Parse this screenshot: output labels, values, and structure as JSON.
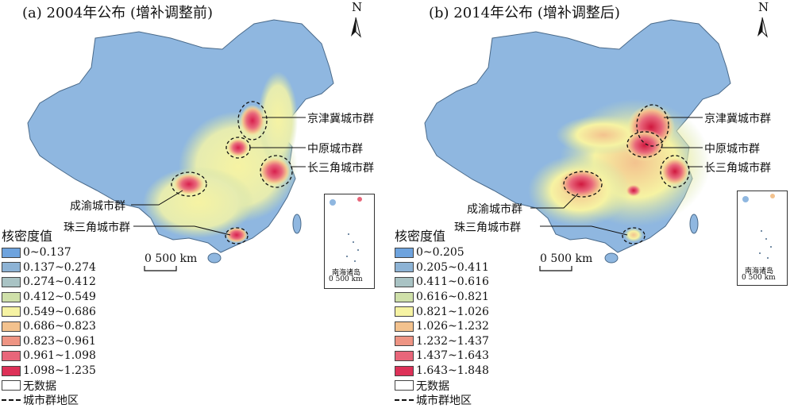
{
  "panels": [
    {
      "id": "2004",
      "title": "(a) 2004年公布 (增补调整前)",
      "north_label": "N",
      "legend_title": "核密度值",
      "legend_classes": [
        {
          "label": "0~0.137",
          "color": "#6ea3de"
        },
        {
          "label": "0.137~0.274",
          "color": "#8db3d5"
        },
        {
          "label": "0.274~0.412",
          "color": "#a9c3c4"
        },
        {
          "label": "0.412~0.549",
          "color": "#cfe0a9"
        },
        {
          "label": "0.549~0.686",
          "color": "#f6f3a3"
        },
        {
          "label": "0.686~0.823",
          "color": "#f3c28e"
        },
        {
          "label": "0.823~0.961",
          "color": "#ee9483"
        },
        {
          "label": "0.961~1.098",
          "color": "#e8667a"
        },
        {
          "label": "1.098~1.235",
          "color": "#dd3158"
        }
      ],
      "legend_nodata": "无数据",
      "legend_cluster": "城市群地区",
      "callouts": {
        "jjj": "京津冀城市群",
        "zy": "中原城市群",
        "csj": "长三角城市群",
        "cy": "成渝城市群",
        "zsj": "珠三角城市群"
      },
      "scale_label": "0    500 km",
      "inset_label": "南海诸岛",
      "inset_scale": "0 500 km"
    },
    {
      "id": "2014",
      "title": "(b) 2014年公布 (增补调整后)",
      "north_label": "N",
      "legend_title": "核密度值",
      "legend_classes": [
        {
          "label": "0~0.205",
          "color": "#6ea3de"
        },
        {
          "label": "0.205~0.411",
          "color": "#8db3d5"
        },
        {
          "label": "0.411~0.616",
          "color": "#a9c3c4"
        },
        {
          "label": "0.616~0.821",
          "color": "#cfe0a9"
        },
        {
          "label": "0.821~1.026",
          "color": "#f6f3a3"
        },
        {
          "label": "1.026~1.232",
          "color": "#f3c28e"
        },
        {
          "label": "1.232~1.437",
          "color": "#ee9483"
        },
        {
          "label": "1.437~1.643",
          "color": "#e8667a"
        },
        {
          "label": "1.643~1.848",
          "color": "#dd3158"
        }
      ],
      "legend_nodata": "无数据",
      "legend_cluster": "城市群地区",
      "callouts": {
        "jjj": "京津冀城市群",
        "zy": "中原城市群",
        "csj": "长三角城市群",
        "cy": "成渝城市群",
        "zsj": "珠三角城市群"
      },
      "scale_label": "0    500 km",
      "inset_label": "南海诸岛",
      "inset_scale": "0 500 km"
    }
  ],
  "colors": {
    "base": "#8fb7e0",
    "sea_island": "#8fb7e0",
    "hot": "#dd3158",
    "warm": "#f6f3a3",
    "outline": "#4a6a8a"
  }
}
